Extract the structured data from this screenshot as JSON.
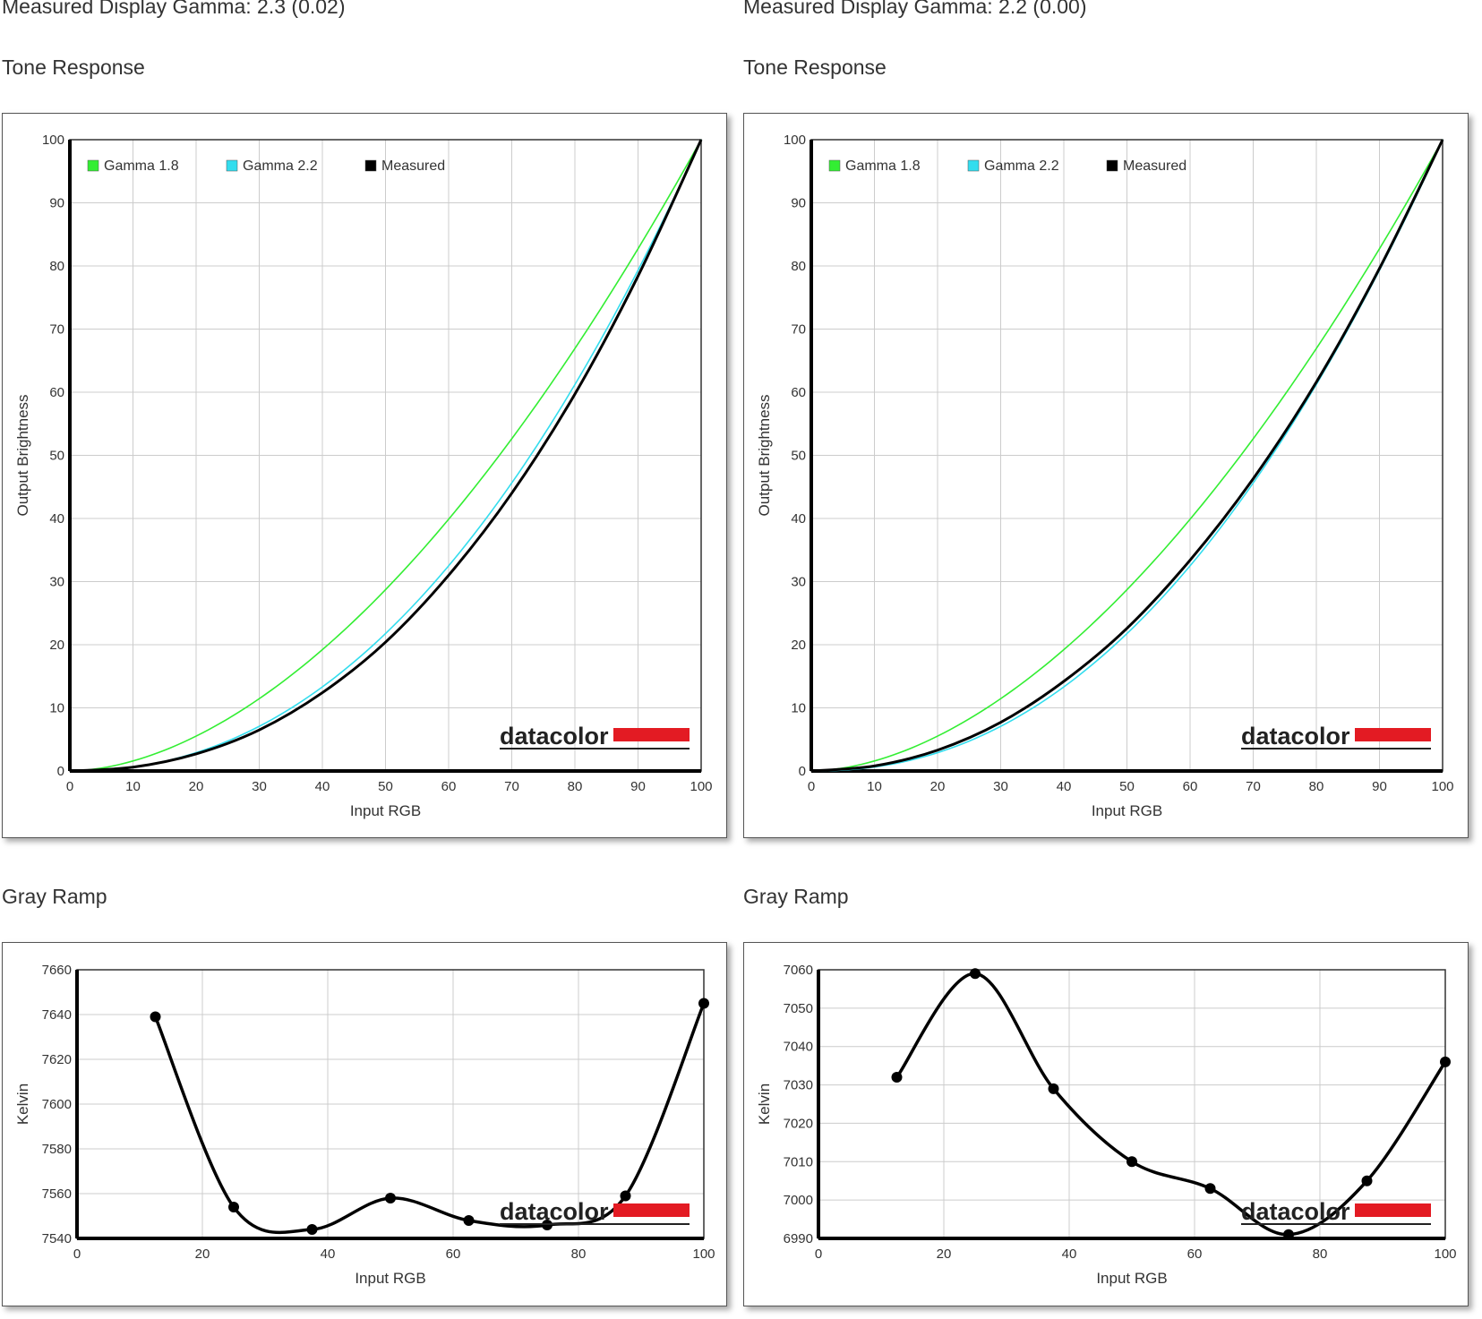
{
  "panels": [
    {
      "gamma_title": "Measured Display Gamma: 2.3 (0.02)",
      "tone_title": "Tone Response",
      "gray_title": "Gray Ramp"
    },
    {
      "gamma_title": "Measured Display Gamma: 2.2 (0.00)",
      "tone_title": "Tone Response",
      "gray_title": "Gray Ramp"
    }
  ],
  "logo": "datacolor",
  "colors": {
    "gamma18": "#33ee33",
    "gamma22": "#33ddee",
    "measured": "#000000",
    "logo_red": "#e31b23"
  },
  "chart_data": [
    {
      "type": "line",
      "title": "Tone Response",
      "xlabel": "Input RGB",
      "ylabel": "Output Brightness",
      "xlim": [
        0,
        100
      ],
      "ylim": [
        0,
        100
      ],
      "xticks": [
        0,
        10,
        20,
        30,
        40,
        50,
        60,
        70,
        80,
        90,
        100
      ],
      "yticks": [
        0,
        10,
        20,
        30,
        40,
        50,
        60,
        70,
        80,
        90,
        100
      ],
      "grid": true,
      "legend": "top-left",
      "series": [
        {
          "name": "Gamma 1.8",
          "gamma": 1.8
        },
        {
          "name": "Gamma 2.2",
          "gamma": 2.2
        },
        {
          "name": "Measured",
          "x": [
            0,
            10,
            20,
            30,
            40,
            50,
            60,
            70,
            80,
            90,
            100
          ],
          "y": [
            0,
            0.6,
            2.7,
            6.5,
            12.4,
            20.4,
            31,
            44,
            59.7,
            78.4,
            100
          ]
        }
      ]
    },
    {
      "type": "line",
      "title": "Tone Response",
      "xlabel": "Input RGB",
      "ylabel": "Output Brightness",
      "xlim": [
        0,
        100
      ],
      "ylim": [
        0,
        100
      ],
      "xticks": [
        0,
        10,
        20,
        30,
        40,
        50,
        60,
        70,
        80,
        90,
        100
      ],
      "yticks": [
        0,
        10,
        20,
        30,
        40,
        50,
        60,
        70,
        80,
        90,
        100
      ],
      "grid": true,
      "legend": "top-left",
      "series": [
        {
          "name": "Gamma 1.8",
          "gamma": 1.8
        },
        {
          "name": "Gamma 2.2",
          "gamma": 2.2
        },
        {
          "name": "Measured",
          "x": [
            0,
            10,
            20,
            30,
            40,
            50,
            60,
            70,
            80,
            90,
            100
          ],
          "y": [
            0,
            0.8,
            3.3,
            7.7,
            14.2,
            22.6,
            33.4,
            46.3,
            61.6,
            79.6,
            100
          ]
        }
      ]
    },
    {
      "type": "line",
      "title": "Gray Ramp",
      "xlabel": "Input RGB",
      "ylabel": "Kelvin",
      "xlim": [
        0,
        100
      ],
      "ylim": [
        7540,
        7660
      ],
      "xticks": [
        0,
        20,
        40,
        60,
        80,
        100
      ],
      "yticks": [
        7540,
        7560,
        7580,
        7600,
        7620,
        7640,
        7660
      ],
      "grid": true,
      "x": [
        12.5,
        25,
        37.5,
        50,
        62.5,
        75,
        87.5,
        100
      ],
      "y": [
        7639,
        7554,
        7544,
        7558,
        7548,
        7546,
        7559,
        7645
      ]
    },
    {
      "type": "line",
      "title": "Gray Ramp",
      "xlabel": "Input RGB",
      "ylabel": "Kelvin",
      "xlim": [
        0,
        100
      ],
      "ylim": [
        6990,
        7060
      ],
      "xticks": [
        0,
        20,
        40,
        60,
        80,
        100
      ],
      "yticks": [
        6990,
        7000,
        7010,
        7020,
        7030,
        7040,
        7050,
        7060
      ],
      "grid": true,
      "x": [
        12.5,
        25,
        37.5,
        50,
        62.5,
        75,
        87.5,
        100
      ],
      "y": [
        7032,
        7059,
        7029,
        7010,
        7003,
        6991,
        7005,
        7036
      ]
    }
  ]
}
